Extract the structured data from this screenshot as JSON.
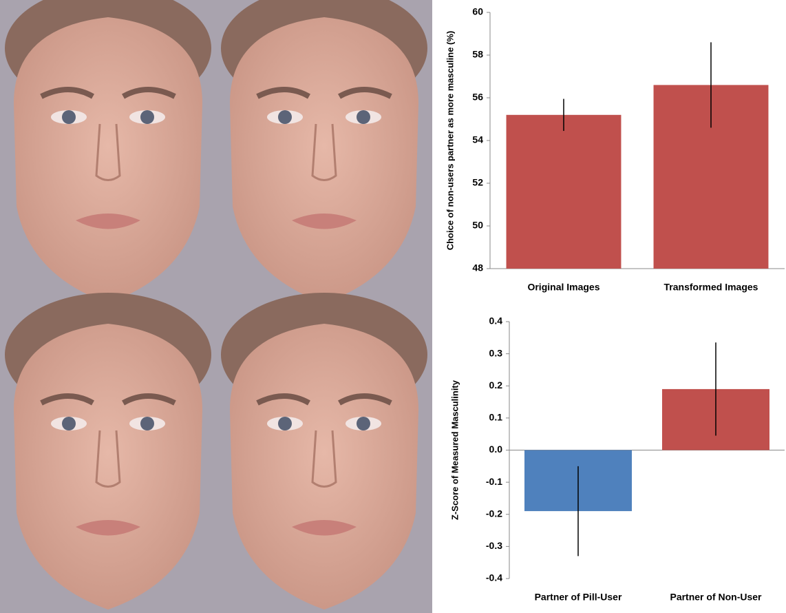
{
  "chart_data": [
    {
      "type": "bar",
      "y_label": "Choice of non-users partner as more masculine (%)",
      "categories": [
        "Original Images",
        "Transformed  Images"
      ],
      "values": [
        55.2,
        56.6
      ],
      "errors": [
        0.75,
        2.0
      ],
      "color": "#c0504d",
      "ylim": [
        48,
        60
      ],
      "yticks": [
        48,
        50,
        52,
        54,
        56,
        58,
        60
      ]
    },
    {
      "type": "bar",
      "y_label": "Z-Score of Measured Masculinity",
      "categories": [
        "Partner of Pill-User",
        "Partner of Non-User"
      ],
      "values": [
        -0.19,
        0.19
      ],
      "errors": [
        0.14,
        0.145
      ],
      "colors": [
        "#4f81bd",
        "#c0504d"
      ],
      "ylim": [
        -0.4,
        0.4
      ],
      "yticks": [
        -0.4,
        -0.3,
        -0.2,
        -0.1,
        {
          "value": 0,
          "label": "0.0"
        },
        0.1,
        0.2,
        0.3,
        0.4
      ]
    }
  ]
}
